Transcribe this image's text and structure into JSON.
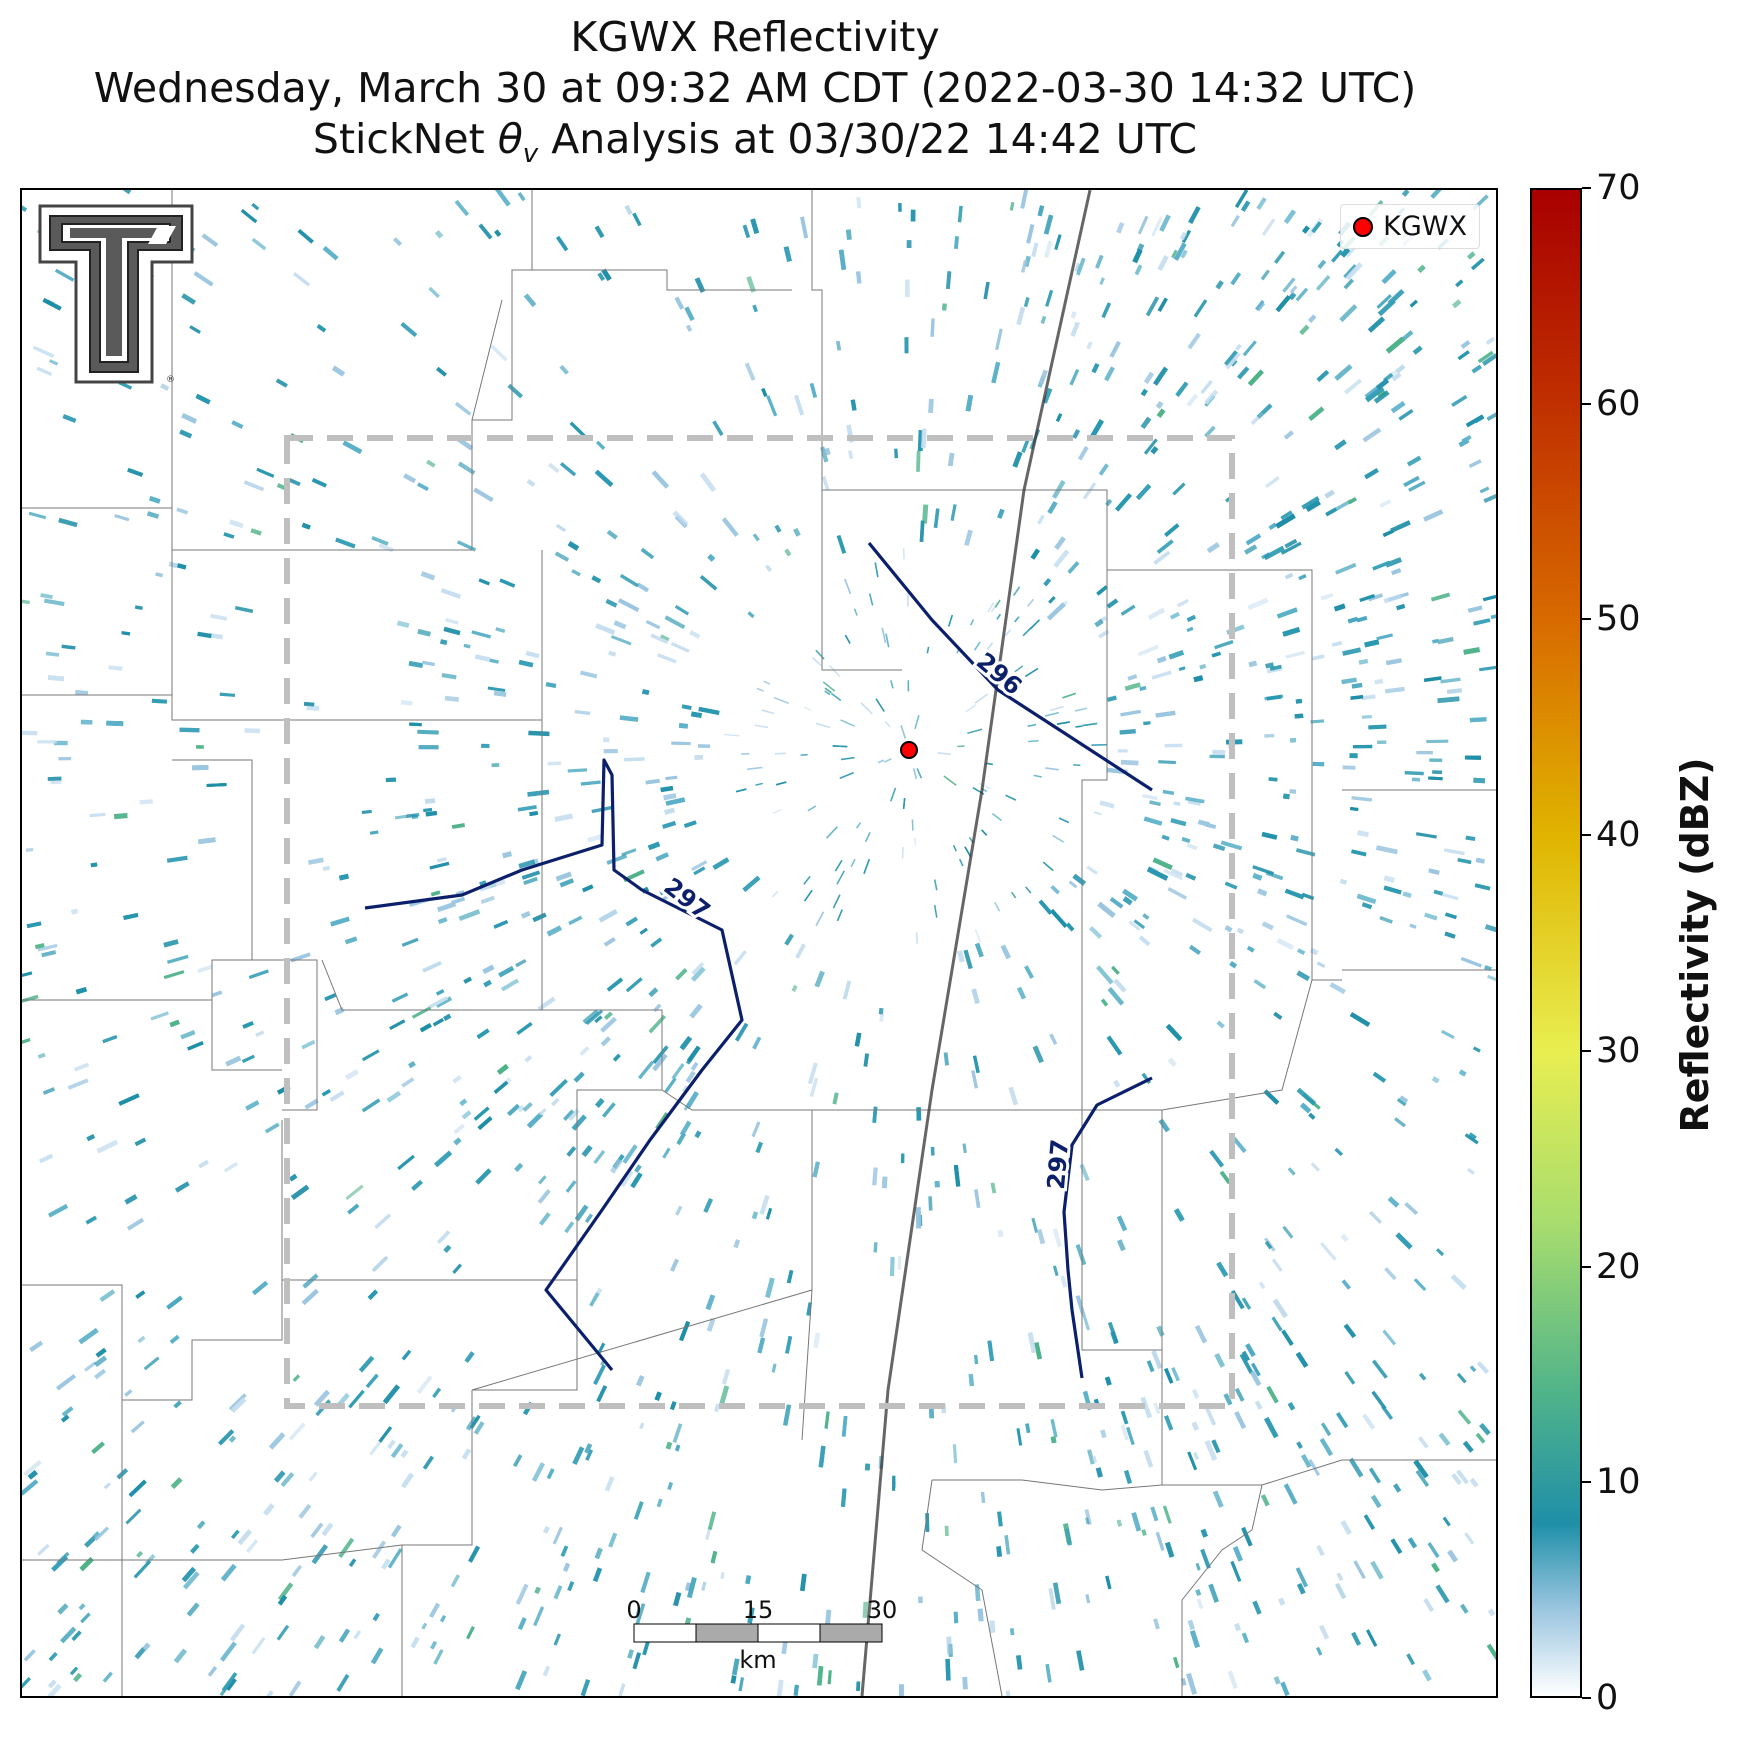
{
  "title": {
    "line1": "KGWX Reflectivity",
    "line2": "Wednesday, March 30 at 09:32 AM CDT (2022-03-30 14:32 UTC)",
    "line3_prefix": "StickNet ",
    "line3_symbol": "θ",
    "line3_subscript": "v",
    "line3_suffix": " Analysis at 03/30/22 14:42 UTC"
  },
  "legend": {
    "radar_label": "KGWX",
    "radar_color": "#ff0000"
  },
  "colorbar": {
    "title": "Reflectivity (dBZ)",
    "min": 0,
    "max": 70,
    "ticks": [
      "0",
      "10",
      "20",
      "30",
      "40",
      "50",
      "60",
      "70"
    ],
    "colors": [
      "#ffffff",
      "#9cc6e0",
      "#1f8fa8",
      "#4fb38a",
      "#a8dd6e",
      "#e8ee50",
      "#e0b400",
      "#d86a00",
      "#c03000",
      "#a80000"
    ]
  },
  "contours": [
    {
      "label": "296"
    },
    {
      "label": "297"
    },
    {
      "label": "297"
    }
  ],
  "scale_bar": {
    "ticks": [
      "0",
      "15",
      "30"
    ],
    "unit": "km"
  },
  "logo": {
    "name": "Texas Tech Double T"
  }
}
